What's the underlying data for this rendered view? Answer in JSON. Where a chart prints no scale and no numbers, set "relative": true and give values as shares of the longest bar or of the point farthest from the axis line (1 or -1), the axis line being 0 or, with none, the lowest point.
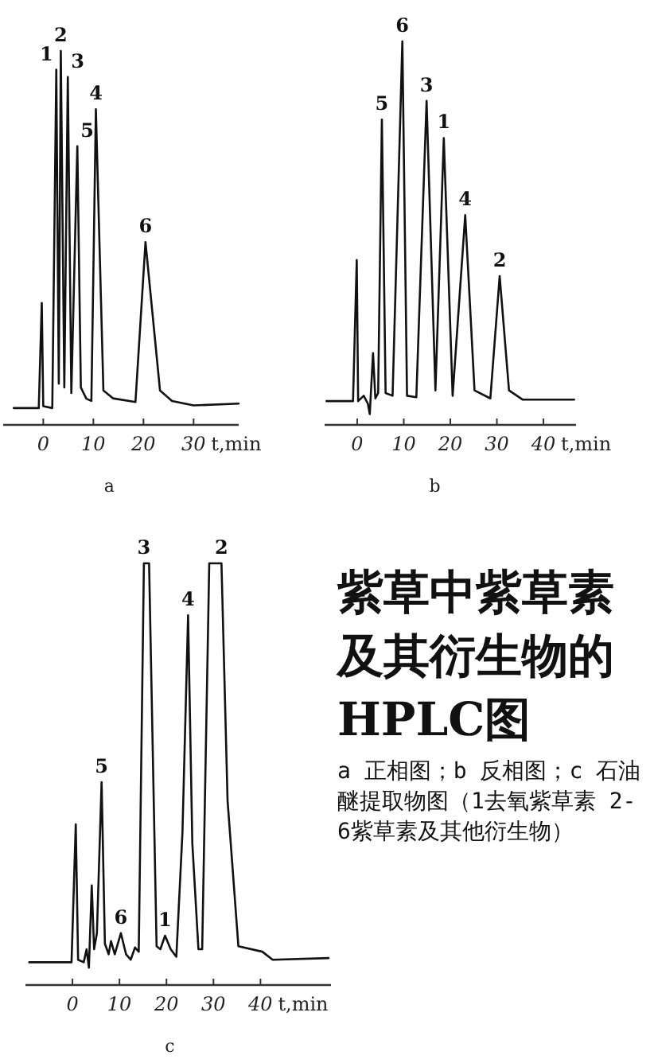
{
  "chart_data": [
    {
      "type": "line",
      "title": "a",
      "xlabel": "t,min",
      "relative": true,
      "tick_labels": "x",
      "xlim": [
        -8,
        39
      ],
      "xticks": [
        0,
        10,
        20,
        30
      ],
      "color": "#111111",
      "x": [
        -5.9,
        -0.9,
        -0.3,
        0,
        1.8,
        2.6,
        3.1,
        3.5,
        4.2,
        4.9,
        5.6,
        6.8,
        7.5,
        8.6,
        9.6,
        10.5,
        12.0,
        13.9,
        18.4,
        20.4,
        23.3,
        25.7,
        30,
        39
      ],
      "values": [
        0.045,
        0.045,
        0.326,
        0.05,
        0.045,
        0.95,
        0.11,
        1.0,
        0.1,
        0.93,
        0.085,
        0.745,
        0.1,
        0.07,
        0.064,
        0.844,
        0.092,
        0.071,
        0.061,
        0.489,
        0.092,
        0.064,
        0.052,
        0.057
      ],
      "annotations": [
        {
          "text": "1",
          "x": 2.6,
          "y": 0.95
        },
        {
          "text": "2",
          "x": 3.5,
          "y": 1.0
        },
        {
          "text": "3",
          "x": 4.9,
          "y": 0.93
        },
        {
          "text": "5",
          "x": 6.8,
          "y": 0.745
        },
        {
          "text": "4",
          "x": 10.5,
          "y": 0.844
        },
        {
          "text": "6",
          "x": 20.4,
          "y": 0.489
        }
      ]
    },
    {
      "type": "line",
      "title": "b",
      "xlabel": "t,min",
      "relative": true,
      "tick_labels": "x",
      "xlim": [
        -7,
        47
      ],
      "xticks": [
        0,
        10,
        20,
        30,
        40
      ],
      "color": "#111111",
      "x": [
        -6.6,
        -0.9,
        -0.1,
        0.2,
        1.4,
        2.3,
        2.7,
        3.4,
        3.9,
        4.5,
        5.3,
        6.1,
        7.6,
        9.7,
        10.7,
        12.7,
        14.9,
        16.8,
        18.6,
        20.5,
        23.2,
        25.2,
        28.6,
        30.6,
        32.6,
        35.5,
        46.6
      ],
      "values": [
        0.062,
        0.062,
        0.43,
        0.062,
        0.076,
        0.055,
        0.028,
        0.187,
        0.069,
        0.083,
        0.796,
        0.083,
        0.076,
        1.0,
        0.076,
        0.072,
        0.845,
        0.09,
        0.748,
        0.076,
        0.547,
        0.09,
        0.069,
        0.388,
        0.09,
        0.066,
        0.066
      ],
      "annotations": [
        {
          "text": "5",
          "x": 5.3,
          "y": 0.796
        },
        {
          "text": "6",
          "x": 9.7,
          "y": 1.0
        },
        {
          "text": "3",
          "x": 14.9,
          "y": 0.845
        },
        {
          "text": "1",
          "x": 18.6,
          "y": 0.748
        },
        {
          "text": "4",
          "x": 23.2,
          "y": 0.547
        },
        {
          "text": "2",
          "x": 30.6,
          "y": 0.388
        }
      ]
    },
    {
      "type": "line",
      "title": "c",
      "xlabel": "t,min",
      "relative": true,
      "tick_labels": "x",
      "xlim": [
        -10,
        55
      ],
      "xticks": [
        0,
        10,
        20,
        30,
        40
      ],
      "color": "#111111",
      "x": [
        -9.2,
        -0.2,
        0.7,
        1.2,
        2.4,
        3.0,
        3.5,
        4.1,
        4.6,
        5.2,
        6.2,
        6.9,
        7.7,
        8.2,
        9.0,
        10.3,
        11.4,
        12.4,
        13.3,
        14.1,
        15.2,
        16.3,
        17.9,
        18.7,
        19.7,
        20.9,
        22.1,
        23.4,
        24.6,
        25.5,
        26.8,
        27.6,
        29.1,
        31.7,
        33.0,
        35.3,
        40.4,
        42.6,
        54.5
      ],
      "values": [
        0.054,
        0.054,
        0.381,
        0.06,
        0.054,
        0.085,
        0.041,
        0.236,
        0.085,
        0.123,
        0.481,
        0.098,
        0.073,
        0.104,
        0.073,
        0.123,
        0.073,
        0.06,
        0.089,
        0.079,
        1.0,
        1.0,
        0.092,
        0.085,
        0.117,
        0.085,
        0.067,
        0.362,
        0.877,
        0.337,
        0.085,
        0.085,
        1.0,
        1.0,
        0.437,
        0.092,
        0.079,
        0.06,
        0.064
      ],
      "annotations": [
        {
          "text": "5",
          "x": 6.2,
          "y": 0.481
        },
        {
          "text": "6",
          "x": 10.3,
          "y": 0.123
        },
        {
          "text": "3",
          "x": 15.2,
          "y": 1.0
        },
        {
          "text": "1",
          "x": 19.7,
          "y": 0.117
        },
        {
          "text": "4",
          "x": 24.6,
          "y": 0.877
        },
        {
          "text": "2",
          "x": 31.7,
          "y": 1.0
        }
      ]
    },
    {
      "type": "other",
      "title": "紫草中紫草素及其衍生物的HPLC图",
      "annotations": [
        "a 正相图；b 反相图；c 石油醚提取物图（1去氧紫草素 2-6紫草素及其他衍生物）"
      ]
    }
  ]
}
